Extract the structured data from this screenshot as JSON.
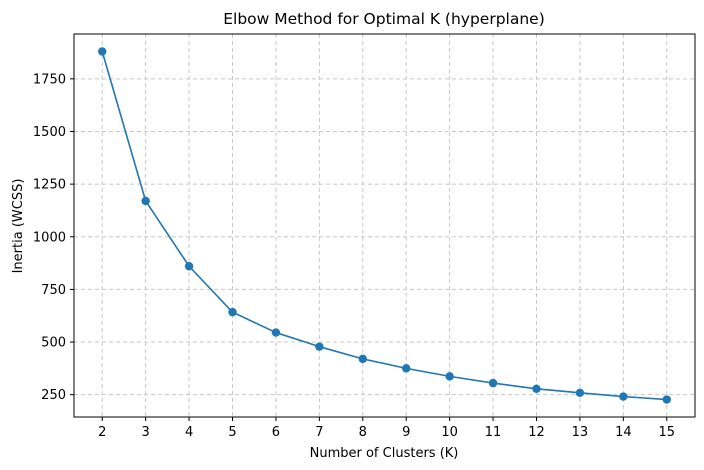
{
  "chart_data": {
    "type": "line",
    "title": "Elbow Method for Optimal K (hyperplane)",
    "xlabel": "Number of Clusters (K)",
    "ylabel": "Inertia (WCSS)",
    "x": [
      2,
      3,
      4,
      5,
      6,
      7,
      8,
      9,
      10,
      11,
      12,
      13,
      14,
      15
    ],
    "series": [
      {
        "values": [
          1880,
          1170,
          860,
          642,
          545,
          478,
          420,
          375,
          337,
          305,
          278,
          259,
          241,
          227
        ],
        "color": "#1f77b4",
        "marker": "circle"
      }
    ],
    "xticks": [
      "2",
      "3",
      "4",
      "5",
      "6",
      "7",
      "8",
      "9",
      "10",
      "11",
      "12",
      "13",
      "14",
      "15"
    ],
    "yticks": [
      250,
      500,
      750,
      1000,
      1250,
      1500,
      1750
    ],
    "ytick_labels": [
      "250",
      "500",
      "750",
      "1000",
      "1250",
      "1500",
      "1750"
    ],
    "xlim": [
      1.35,
      15.65
    ],
    "ylim": [
      144,
      1963
    ],
    "grid": true,
    "grid_style": "dashed",
    "grid_color": "#c8c8c8"
  }
}
